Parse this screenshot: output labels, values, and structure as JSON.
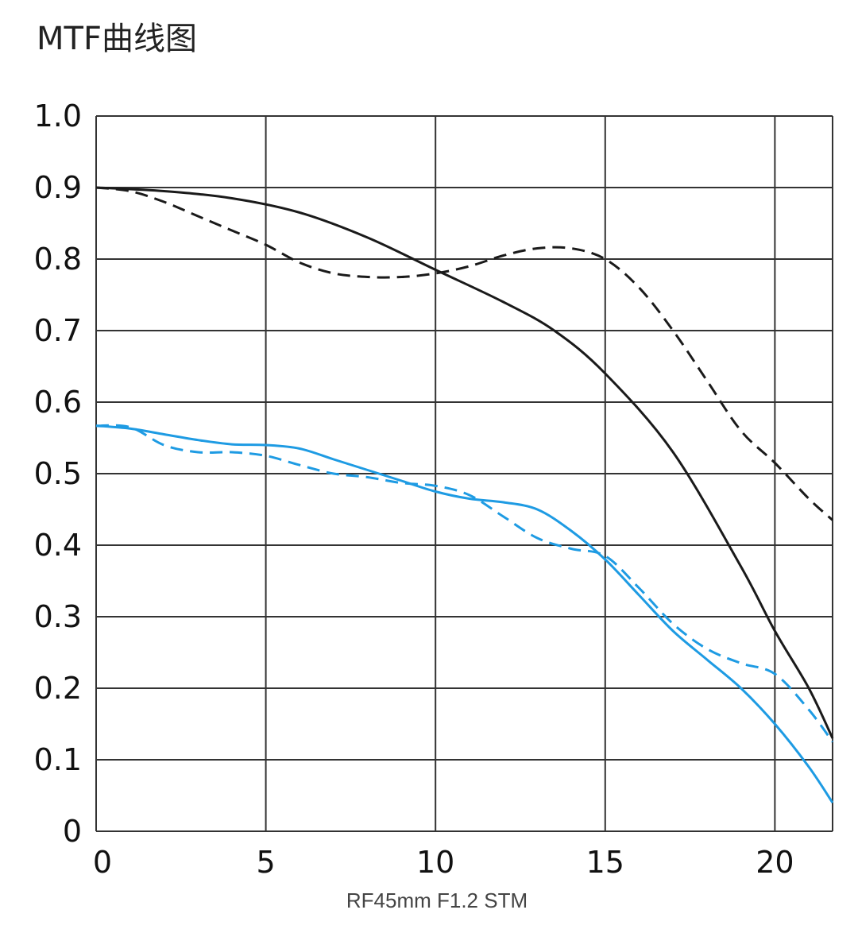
{
  "page_title": "MTF曲线图",
  "chart_data": {
    "type": "line",
    "title": "MTF曲线图",
    "caption": "RF45mm F1.2 STM",
    "xlabel": "",
    "ylabel": "",
    "xlim": [
      0,
      21.7
    ],
    "ylim": [
      0,
      1.0
    ],
    "x_ticks": [
      0,
      5,
      10,
      15,
      20
    ],
    "x_tick_labels": [
      "0",
      "5",
      "10",
      "15",
      "20"
    ],
    "y_ticks": [
      0,
      0.1,
      0.2,
      0.3,
      0.4,
      0.5,
      0.6,
      0.7,
      0.8,
      0.9,
      1.0
    ],
    "y_tick_labels": [
      "0",
      "0.1",
      "0.2",
      "0.3",
      "0.4",
      "0.5",
      "0.6",
      "0.7",
      "0.8",
      "0.9",
      "1.0"
    ],
    "grid": true,
    "legend": "none",
    "colors": {
      "black": "#1a1a1a",
      "blue": "#1e9be3",
      "grid": "#333333"
    },
    "series": [
      {
        "color": "#1a1a1a",
        "dash": false,
        "x": [
          0,
          2,
          4,
          6,
          8,
          10,
          12,
          13.5,
          15,
          17,
          19,
          20,
          21,
          21.7
        ],
        "y": [
          0.9,
          0.895,
          0.885,
          0.865,
          0.83,
          0.785,
          0.74,
          0.7,
          0.64,
          0.53,
          0.37,
          0.28,
          0.2,
          0.13
        ]
      },
      {
        "color": "#1a1a1a",
        "dash": true,
        "x": [
          0,
          1,
          2,
          3,
          4,
          5,
          6,
          7,
          8,
          9,
          10,
          11,
          12,
          13,
          14,
          15,
          16,
          17,
          18,
          19,
          20,
          21,
          21.7
        ],
        "y": [
          0.9,
          0.895,
          0.88,
          0.86,
          0.84,
          0.82,
          0.795,
          0.78,
          0.775,
          0.775,
          0.78,
          0.79,
          0.805,
          0.815,
          0.815,
          0.8,
          0.76,
          0.7,
          0.63,
          0.56,
          0.515,
          0.465,
          0.435
        ]
      },
      {
        "color": "#1e9be3",
        "dash": false,
        "x": [
          0,
          1,
          2,
          3,
          4,
          5,
          6,
          7,
          8,
          9,
          10,
          11,
          12,
          13,
          14,
          15,
          16,
          17,
          18,
          19,
          20,
          21,
          21.7
        ],
        "y": [
          0.567,
          0.563,
          0.555,
          0.547,
          0.541,
          0.54,
          0.535,
          0.52,
          0.505,
          0.49,
          0.475,
          0.465,
          0.46,
          0.45,
          0.42,
          0.38,
          0.33,
          0.28,
          0.24,
          0.2,
          0.15,
          0.09,
          0.04
        ]
      },
      {
        "color": "#1e9be3",
        "dash": true,
        "x": [
          0,
          1,
          2,
          3,
          4,
          5,
          6,
          7,
          8,
          9,
          10,
          11,
          12,
          13,
          14,
          15,
          16,
          17,
          18,
          19,
          20,
          21,
          21.7
        ],
        "y": [
          0.567,
          0.565,
          0.54,
          0.53,
          0.53,
          0.525,
          0.512,
          0.5,
          0.495,
          0.487,
          0.483,
          0.47,
          0.44,
          0.41,
          0.395,
          0.385,
          0.34,
          0.29,
          0.255,
          0.235,
          0.22,
          0.17,
          0.125
        ]
      }
    ]
  }
}
